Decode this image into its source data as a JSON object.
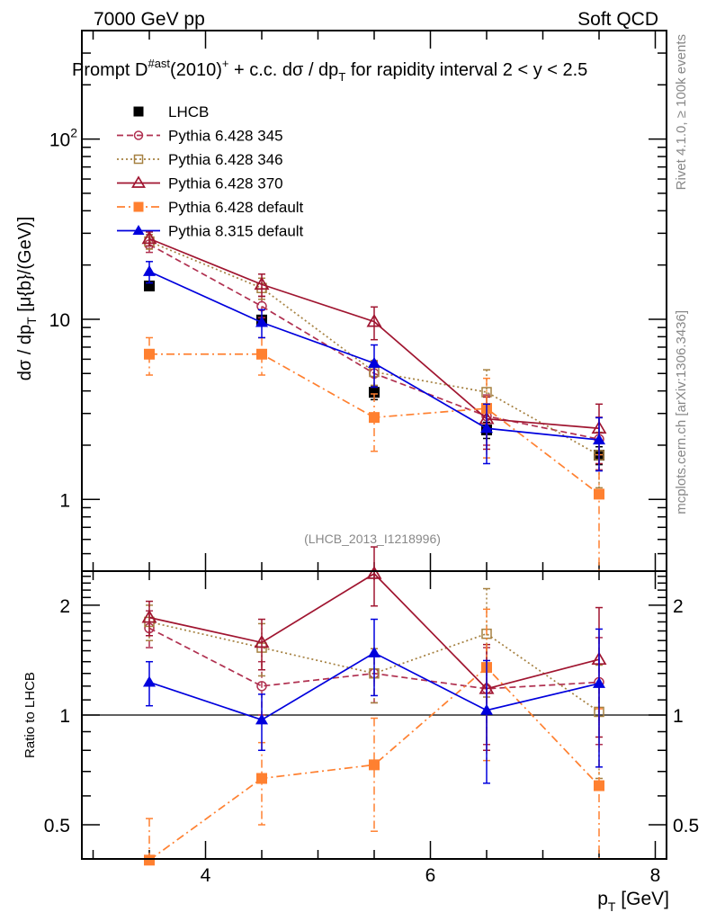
{
  "header": {
    "left": "7000 GeV pp",
    "right": "Soft QCD"
  },
  "side_labels": {
    "rivet": "Rivet 4.1.0, ≥ 100k events",
    "mcplots": "mcplots.cern.ch [arXiv:1306.3436]"
  },
  "chart_data": [
    {
      "type": "line",
      "title": "Prompt D^{#ast}(2010)^{+} + c.c.  dσ / dp_T for rapidity interval 2 < y < 2.5",
      "title_parts": {
        "pre": "Prompt D",
        "sup1": "#ast",
        "mid": "(2010)",
        "sup2": "+",
        "post1": " + c.c.  dσ / dp",
        "sub": "T",
        "post2": " for rapidity interval 2 < y < 2.5"
      },
      "ylabel": "dσ / dp_T [μ{b}/(GeV)]",
      "ylabel_parts": {
        "pre": "dσ / dp",
        "sub": "T",
        "post": " [μ{b}/(GeV)]"
      },
      "xlabel": "",
      "yscale": "log",
      "xlim": [
        2.9,
        8.1
      ],
      "ylim": [
        0.4,
        400
      ],
      "yticks": [
        {
          "v": 1,
          "label": "1"
        },
        {
          "v": 10,
          "label": "10"
        },
        {
          "v": 100,
          "label": "10",
          "sup": "2"
        }
      ],
      "annotation": "(LHCB_2013_I1218996)",
      "legend_position": "top-left",
      "x": [
        3.5,
        4.5,
        5.5,
        6.5,
        7.5
      ],
      "series": [
        {
          "name": "LHCB",
          "color": "#000000",
          "marker": "filled-square",
          "line": "none",
          "values": [
            15.3,
            9.9,
            3.93,
            2.43,
            1.76
          ],
          "errors": [
            0.8,
            0.6,
            0.35,
            0.25,
            0.2
          ]
        },
        {
          "name": "Pythia 6.428 345",
          "color": "#b03050",
          "marker": "open-circle",
          "line": "dashed",
          "values": [
            26,
            11.8,
            5.0,
            2.9,
            2.16
          ],
          "errors": [
            2.5,
            1.6,
            0.8,
            0.9,
            0.7
          ]
        },
        {
          "name": "Pythia 6.428 346",
          "color": "#a58040",
          "marker": "open-square",
          "line": "dotted",
          "values": [
            27,
            14.9,
            5.1,
            3.94,
            1.76
          ],
          "errors": [
            2.5,
            2.0,
            0.8,
            1.3,
            0.6
          ]
        },
        {
          "name": "Pythia 6.428 370",
          "color": "#a01530",
          "marker": "open-triangle",
          "line": "solid",
          "values": [
            28,
            15.6,
            9.7,
            2.8,
            2.48
          ],
          "errors": [
            2.5,
            2.2,
            2.0,
            0.9,
            0.9
          ]
        },
        {
          "name": "Pythia 6.428 default",
          "color": "#ff8030",
          "marker": "filled-square",
          "line": "dashdot",
          "values": [
            6.4,
            6.4,
            2.85,
            3.2,
            1.07
          ],
          "errors": [
            1.5,
            1.5,
            1.0,
            1.5,
            0.7
          ]
        },
        {
          "name": "Pythia 8.315 default",
          "color": "#0000dd",
          "marker": "filled-triangle",
          "line": "solid",
          "values": [
            18.4,
            9.6,
            5.7,
            2.48,
            2.14
          ],
          "errors": [
            2.5,
            1.7,
            1.5,
            0.9,
            0.7
          ]
        }
      ]
    },
    {
      "type": "line",
      "title": "",
      "ylabel": "Ratio to LHCB",
      "xlabel": "p_T [GeV]",
      "xlabel_parts": {
        "pre": "p",
        "sub": "T",
        "post": " [GeV]"
      },
      "yscale": "log",
      "xlim": [
        2.9,
        8.1
      ],
      "ylim": [
        0.403,
        2.48
      ],
      "xticks": [
        {
          "v": 4,
          "label": "4"
        },
        {
          "v": 6,
          "label": "6"
        },
        {
          "v": 8,
          "label": "8"
        }
      ],
      "yticks": [
        {
          "v": 0.5,
          "label": "0.5"
        },
        {
          "v": 1,
          "label": "1"
        },
        {
          "v": 2,
          "label": "2"
        }
      ],
      "reference_line": 1,
      "x": [
        3.5,
        4.5,
        5.5,
        6.5,
        7.5
      ],
      "series": [
        {
          "name": "Pythia 6.428 345",
          "color": "#b03050",
          "marker": "open-circle",
          "line": "dashed",
          "values": [
            1.73,
            1.2,
            1.3,
            1.18,
            1.23
          ],
          "errors": [
            0.2,
            0.2,
            0.22,
            0.35,
            0.4
          ]
        },
        {
          "name": "Pythia 6.428 346",
          "color": "#a58040",
          "marker": "open-square",
          "line": "dotted",
          "values": [
            1.8,
            1.53,
            1.3,
            1.67,
            1.02
          ],
          "errors": [
            0.2,
            0.25,
            0.22,
            0.55,
            0.35
          ]
        },
        {
          "name": "Pythia 6.428 370",
          "color": "#a01530",
          "marker": "open-triangle",
          "line": "solid",
          "values": [
            1.85,
            1.58,
            2.44,
            1.18,
            1.42
          ],
          "errors": [
            0.2,
            0.25,
            0.45,
            0.38,
            0.55
          ]
        },
        {
          "name": "Pythia 6.428 default",
          "color": "#ff8030",
          "marker": "filled-square",
          "line": "dashdot",
          "values": [
            0.4,
            0.67,
            0.73,
            1.35,
            0.64
          ],
          "errors": [
            0.12,
            0.17,
            0.25,
            0.6,
            0.4
          ]
        },
        {
          "name": "Pythia 8.315 default",
          "color": "#0000dd",
          "marker": "filled-triangle",
          "line": "solid",
          "values": [
            1.23,
            0.97,
            1.48,
            1.03,
            1.22
          ],
          "errors": [
            0.17,
            0.17,
            0.35,
            0.38,
            0.5
          ]
        }
      ]
    }
  ]
}
